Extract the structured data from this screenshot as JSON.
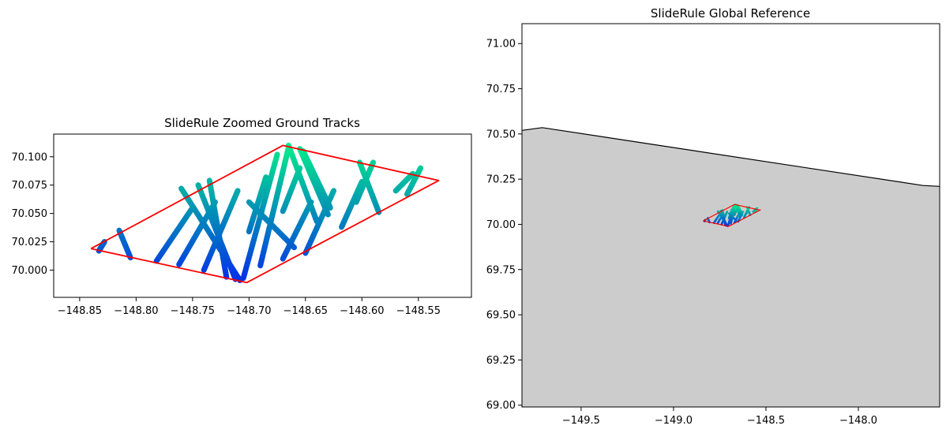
{
  "chart_data": [
    {
      "type": "scatter",
      "title": "SlideRule Zoomed Ground Tracks",
      "xlabel": "",
      "ylabel": "",
      "xlim": [
        -148.873,
        -148.503
      ],
      "ylim": [
        69.976,
        70.12
      ],
      "xticks": [
        -148.85,
        -148.8,
        -148.75,
        -148.7,
        -148.65,
        -148.6,
        -148.55
      ],
      "xtick_labels": [
        "−148.85",
        "−148.80",
        "−148.75",
        "−148.70",
        "−148.65",
        "−148.60",
        "−148.55"
      ],
      "yticks": [
        70.0,
        70.025,
        70.05,
        70.075,
        70.1
      ],
      "ytick_labels": [
        "70.000",
        "70.025",
        "70.050",
        "70.075",
        "70.100"
      ],
      "grid": false,
      "colormap": [
        "#0022ee",
        "#00ee88"
      ],
      "region_color": "#ff0000",
      "region_polygon": [
        [
          -148.84,
          70.019
        ],
        [
          -148.67,
          70.11
        ],
        [
          -148.532,
          70.079
        ],
        [
          -148.702,
          69.989
        ],
        [
          -148.84,
          70.019
        ]
      ],
      "tracks": [
        {
          "from": [
            -148.833,
            70.017
          ],
          "to": [
            -148.828,
            70.025
          ]
        },
        {
          "from": [
            -148.805,
            70.011
          ],
          "to": [
            -148.815,
            70.035
          ]
        },
        {
          "from": [
            -148.782,
            70.008
          ],
          "to": [
            -148.75,
            70.055
          ]
        },
        {
          "from": [
            -148.762,
            70.005
          ],
          "to": [
            -148.73,
            70.06
          ]
        },
        {
          "from": [
            -148.74,
            70.0
          ],
          "to": [
            -148.71,
            70.07
          ]
        },
        {
          "from": [
            -148.708,
            69.991
          ],
          "to": [
            -148.76,
            70.072
          ]
        },
        {
          "from": [
            -148.712,
            69.992
          ],
          "to": [
            -148.745,
            70.075
          ]
        },
        {
          "from": [
            -148.72,
            69.994
          ],
          "to": [
            -148.735,
            70.079
          ]
        },
        {
          "from": [
            -148.705,
            69.993
          ],
          "to": [
            -148.675,
            70.102
          ]
        },
        {
          "from": [
            -148.69,
            70.004
          ],
          "to": [
            -148.665,
            70.108
          ]
        },
        {
          "from": [
            -148.7,
            70.034
          ],
          "to": [
            -148.685,
            70.082
          ]
        },
        {
          "from": [
            -148.66,
            70.02
          ],
          "to": [
            -148.7,
            70.06
          ]
        },
        {
          "from": [
            -148.67,
            70.052
          ],
          "to": [
            -148.655,
            70.09
          ]
        },
        {
          "from": [
            -148.64,
            70.043
          ],
          "to": [
            -148.665,
            70.11
          ]
        },
        {
          "from": [
            -148.63,
            70.049
          ],
          "to": [
            -148.655,
            70.107
          ]
        },
        {
          "from": [
            -148.628,
            70.055
          ],
          "to": [
            -148.652,
            70.105
          ]
        },
        {
          "from": [
            -148.67,
            70.01
          ],
          "to": [
            -148.645,
            70.06
          ]
        },
        {
          "from": [
            -148.65,
            70.015
          ],
          "to": [
            -148.625,
            70.07
          ]
        },
        {
          "from": [
            -148.618,
            70.038
          ],
          "to": [
            -148.6,
            70.078
          ]
        },
        {
          "from": [
            -148.605,
            70.06
          ],
          "to": [
            -148.59,
            70.095
          ]
        },
        {
          "from": [
            -148.585,
            70.051
          ],
          "to": [
            -148.602,
            70.095
          ]
        },
        {
          "from": [
            -148.57,
            70.07
          ],
          "to": [
            -148.555,
            70.085
          ]
        },
        {
          "from": [
            -148.56,
            70.067
          ],
          "to": [
            -148.548,
            70.09
          ]
        }
      ]
    },
    {
      "type": "scatter",
      "title": "SlideRule Global Reference",
      "xlabel": "",
      "ylabel": "",
      "xlim": [
        -149.82,
        -147.56
      ],
      "ylim": [
        68.99,
        71.11
      ],
      "xticks": [
        -149.5,
        -149.0,
        -148.5,
        -148.0
      ],
      "xtick_labels": [
        "−149.5",
        "−149.0",
        "−148.5",
        "−148.0"
      ],
      "yticks": [
        69.0,
        69.25,
        69.5,
        69.75,
        70.0,
        70.25,
        70.5,
        70.75,
        71.0
      ],
      "ytick_labels": [
        "69.00",
        "69.25",
        "69.50",
        "69.75",
        "70.00",
        "70.25",
        "70.50",
        "70.75",
        "71.00"
      ],
      "grid": false,
      "land_color": "#cccccc",
      "coastline_color": "#000000",
      "region_color": "#ff0000",
      "coastline": [
        [
          -149.82,
          70.52
        ],
        [
          -149.71,
          70.535
        ],
        [
          -147.65,
          70.215
        ],
        [
          -147.56,
          70.21
        ]
      ],
      "region_polygon": [
        [
          -148.84,
          70.019
        ],
        [
          -148.67,
          70.11
        ],
        [
          -148.532,
          70.079
        ],
        [
          -148.702,
          69.989
        ],
        [
          -148.84,
          70.019
        ]
      ]
    }
  ]
}
